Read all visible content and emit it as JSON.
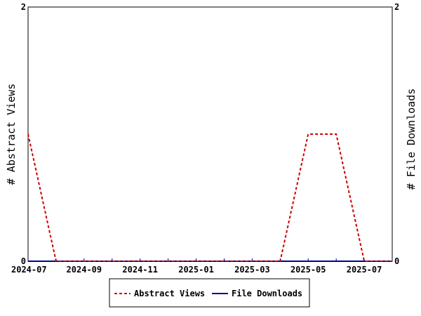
{
  "chart_data": {
    "type": "line",
    "title": "",
    "xlabel": "",
    "ylabel_left": "# Abstract Views",
    "ylabel_right": "# File Downloads",
    "x": [
      "2024-07",
      "2024-08",
      "2024-09",
      "2024-10",
      "2024-11",
      "2024-12",
      "2025-01",
      "2025-02",
      "2025-03",
      "2025-04",
      "2025-05",
      "2025-06",
      "2025-07",
      "2025-08"
    ],
    "x_tick_labels": [
      {
        "x": "2024-07",
        "label": "2024-07"
      },
      {
        "x": "2024-09",
        "label": "2024-09"
      },
      {
        "x": "2024-11",
        "label": "2024-11"
      },
      {
        "x": "2025-01",
        "label": "2025-01"
      },
      {
        "x": "2025-03",
        "label": "2025-03"
      },
      {
        "x": "2025-05",
        "label": "2025-05"
      },
      {
        "x": "2025-07",
        "label": "2025-07"
      }
    ],
    "ylim_left": [
      0,
      2
    ],
    "ylim_right": [
      0,
      2
    ],
    "y_ticks_left": [
      "0",
      "2"
    ],
    "y_ticks_right": [
      "0",
      "2"
    ],
    "series": [
      {
        "name": "Abstract Views",
        "axis": "left",
        "color": "#cc0000",
        "style": "dashed",
        "values": [
          1,
          0,
          0,
          0,
          0,
          0,
          0,
          0,
          0,
          0,
          1,
          1,
          0,
          0
        ]
      },
      {
        "name": "File Downloads",
        "axis": "right",
        "color": "#000099",
        "style": "solid",
        "values": [
          0,
          0,
          0,
          0,
          0,
          0,
          0,
          0,
          0,
          0,
          0,
          0,
          0,
          0
        ]
      }
    ],
    "legend": {
      "position": "bottom-center",
      "entries": [
        "Abstract Views",
        "File Downloads"
      ]
    },
    "grid": false
  }
}
